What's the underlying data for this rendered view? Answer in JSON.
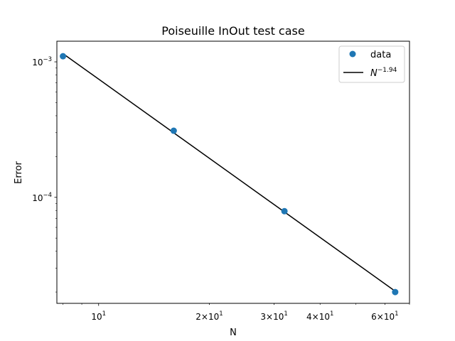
{
  "chart_data": {
    "type": "scatter",
    "title": "Poiseuille InOut test case",
    "xlabel": "N",
    "ylabel": "Error",
    "xscale": "log",
    "yscale": "log",
    "xlim": [
      7.7,
      70
    ],
    "ylim": [
      1.65e-05,
      0.00142
    ],
    "grid": false,
    "legend_position": "top-right",
    "x_ticks": [
      {
        "value": 10,
        "base": "10",
        "exp": "1",
        "coef": ""
      },
      {
        "value": 20,
        "base": "10",
        "exp": "1",
        "coef": "2"
      },
      {
        "value": 30,
        "base": "10",
        "exp": "1",
        "coef": "3"
      },
      {
        "value": 40,
        "base": "10",
        "exp": "1",
        "coef": "4"
      },
      {
        "value": 60,
        "base": "10",
        "exp": "1",
        "coef": "6"
      }
    ],
    "y_ticks": [
      {
        "value": 0.001,
        "base": "10",
        "exp": "−3"
      },
      {
        "value": 0.0001,
        "base": "10",
        "exp": "−4"
      }
    ],
    "series": [
      {
        "name": "data",
        "kind": "scatter",
        "color": "#1f77b4",
        "x": [
          8,
          16,
          32,
          64
        ],
        "y": [
          0.0011,
          0.00031,
          7.9e-05,
          2e-05
        ]
      },
      {
        "name_base": "N",
        "name_exp": "−1.94",
        "kind": "line",
        "color": "#000000",
        "x": [
          8,
          64
        ],
        "y": [
          0.00115,
          2.03e-05
        ]
      }
    ]
  }
}
